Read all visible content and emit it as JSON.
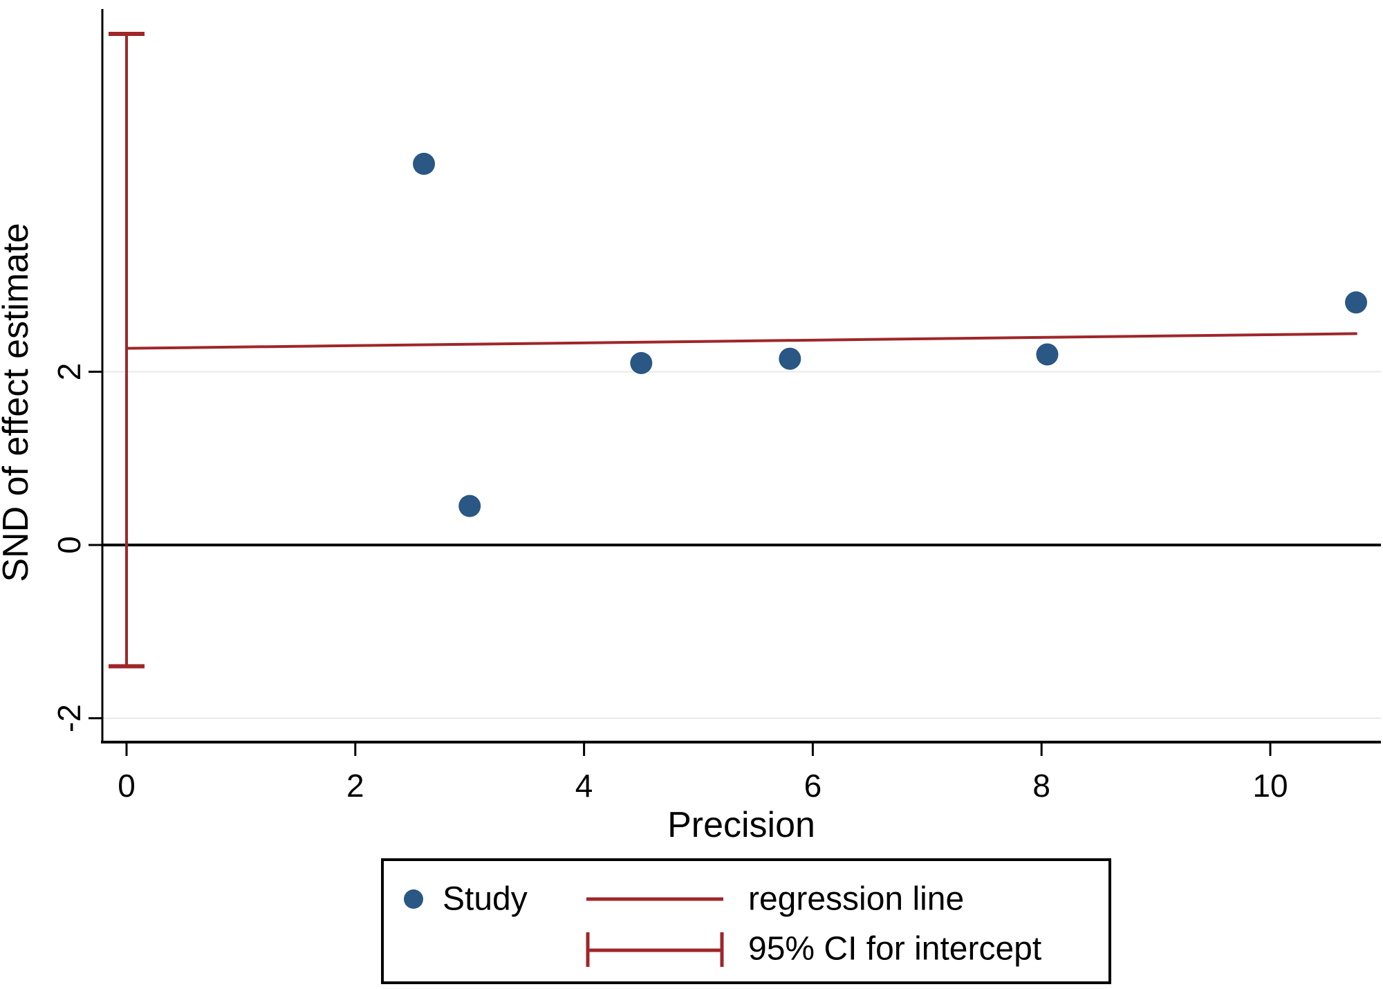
{
  "figure": {
    "background_color": "#ffffff",
    "axis_color": "#000000",
    "text_color": "#000000"
  },
  "chart_data": {
    "type": "scatter",
    "title": "",
    "xlabel": "Precision",
    "ylabel": "SND of effect estimate",
    "x_ticks": [
      0,
      2,
      4,
      6,
      8,
      10
    ],
    "y_ticks": [
      -2,
      0,
      2
    ],
    "xlim": [
      -0.21,
      10.9
    ],
    "ylim": [
      -2.28,
      6.2
    ],
    "grid": {
      "y_values": [
        -2,
        2
      ],
      "color": "#e8e8e8",
      "on": true
    },
    "zero_reference_line": {
      "y": 0,
      "color": "#000000"
    },
    "series": [
      {
        "name": "Study",
        "type": "scatter",
        "marker": "circle",
        "color": "#2a5783",
        "points": [
          [
            2.6,
            4.4
          ],
          [
            3.0,
            0.45
          ],
          [
            4.5,
            2.1
          ],
          [
            5.8,
            2.15
          ],
          [
            8.05,
            2.2
          ],
          [
            10.75,
            2.8
          ]
        ]
      },
      {
        "name": "regression line",
        "type": "line",
        "color": "#9f2629",
        "x": [
          0,
          10.76
        ],
        "y": [
          2.27,
          2.44
        ]
      },
      {
        "name": "95% CI for intercept",
        "type": "errorbar",
        "color": "#9f2629",
        "x": 0,
        "y_low": -1.4,
        "y_high": 5.9
      }
    ],
    "legend_position": "bottom-center"
  }
}
